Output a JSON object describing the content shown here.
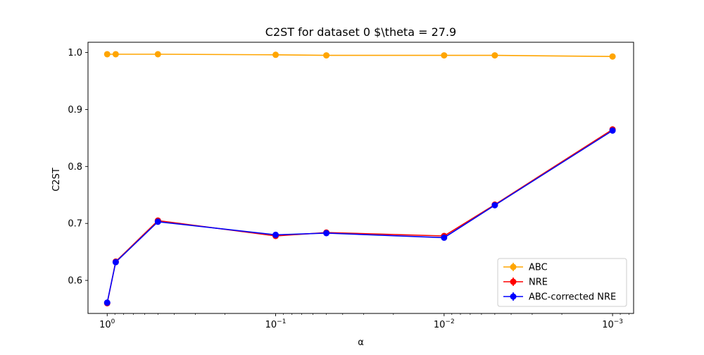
{
  "chart_data": {
    "type": "line",
    "title": "C2ST for dataset 0 $\\theta = 27.9",
    "xlabel": "α",
    "ylabel": "C2ST",
    "xscale": "log",
    "xaxis_reversed": true,
    "xlim": [
      1.3,
      0.00075
    ],
    "ylim": [
      0.542,
      1.018
    ],
    "x": [
      1.0,
      0.89,
      0.5,
      0.1,
      0.05,
      0.01,
      0.005,
      0.001
    ],
    "xticks": [
      {
        "value": 1,
        "base": "10",
        "exp": "0"
      },
      {
        "value": 0.1,
        "base": "10",
        "exp": "−1"
      },
      {
        "value": 0.01,
        "base": "10",
        "exp": "−2"
      },
      {
        "value": 0.001,
        "base": "10",
        "exp": "−3"
      }
    ],
    "yticks": [
      {
        "value": 0.6,
        "label": "0.6"
      },
      {
        "value": 0.7,
        "label": "0.7"
      },
      {
        "value": 0.8,
        "label": "0.8"
      },
      {
        "value": 0.9,
        "label": "0.9"
      },
      {
        "value": 1.0,
        "label": "1.0"
      }
    ],
    "series": [
      {
        "name": "ABC",
        "color": "#ffa500",
        "values": [
          0.997,
          0.997,
          0.997,
          0.996,
          0.995,
          0.995,
          0.995,
          0.993
        ]
      },
      {
        "name": "NRE",
        "color": "#ff0000",
        "values": [
          0.56,
          0.633,
          0.705,
          0.678,
          0.684,
          0.678,
          0.733,
          0.865
        ]
      },
      {
        "name": "ABC-corrected NRE",
        "color": "#0000ff",
        "values": [
          0.561,
          0.632,
          0.703,
          0.68,
          0.683,
          0.675,
          0.732,
          0.863
        ]
      }
    ],
    "legend_position": "lower-right",
    "grid": false
  }
}
